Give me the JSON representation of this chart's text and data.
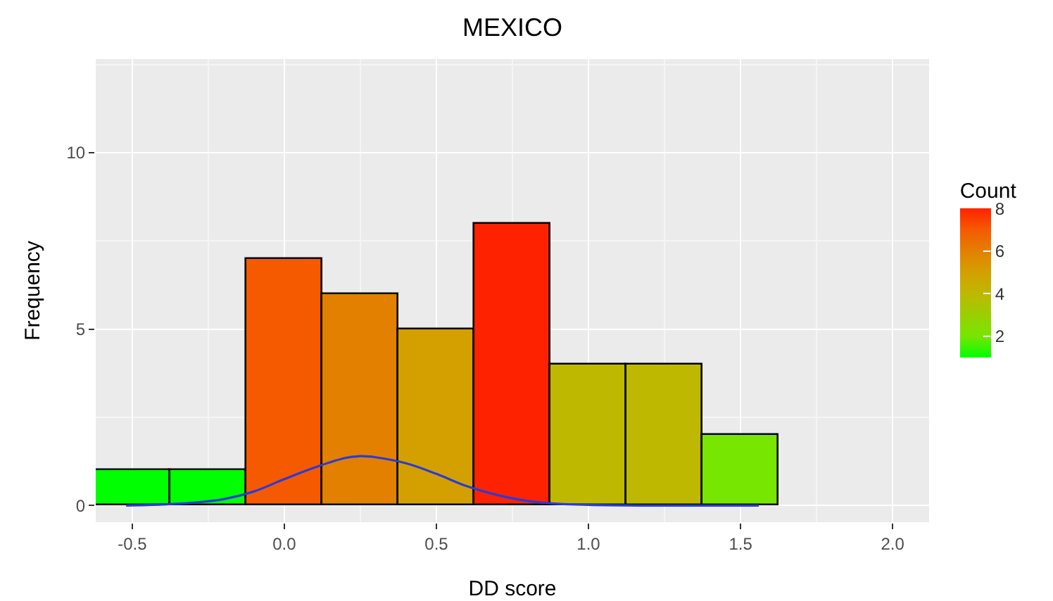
{
  "chart_data": {
    "type": "histogram",
    "title": "MEXICO",
    "xlabel": "DD score",
    "ylabel": "Frequency",
    "clabel": "Count",
    "bins": [
      -0.625,
      -0.375,
      -0.125,
      0.125,
      0.375,
      0.625,
      0.875,
      1.125,
      1.375,
      1.625
    ],
    "values": [
      1,
      1,
      7,
      6,
      5,
      8,
      4,
      4,
      2
    ],
    "colors": [
      "#00ff00",
      "#00ff00",
      "#f55a00",
      "#e38000",
      "#d4a000",
      "#ff2200",
      "#bfb800",
      "#bfb800",
      "#77e600"
    ],
    "series": [
      {
        "type": "line",
        "color": "#2a3bd8",
        "x": [
          -0.52,
          -0.4,
          -0.3,
          -0.2,
          -0.1,
          0,
          0.1,
          0.2,
          0.25,
          0.3,
          0.4,
          0.5,
          0.6,
          0.7,
          0.8,
          0.9,
          1.0,
          1.2,
          1.56
        ],
        "values": [
          0,
          0.03,
          0.08,
          0.18,
          0.4,
          0.75,
          1.08,
          1.35,
          1.4,
          1.37,
          1.2,
          0.9,
          0.55,
          0.3,
          0.13,
          0.05,
          0.02,
          0,
          0
        ]
      }
    ],
    "xlim": [
      -0.62,
      2.12
    ],
    "ylim": [
      -0.47,
      12.65
    ],
    "xticks": [
      -0.5,
      {
        "value": 0,
        "label": "0.0"
      },
      0.5,
      {
        "value": 1,
        "label": "1.0"
      },
      1.5,
      {
        "value": 2,
        "label": "2.0"
      }
    ],
    "yticks": [
      0,
      5,
      10
    ],
    "clim": [
      1,
      8
    ],
    "cticks": [
      2,
      4,
      6,
      8
    ],
    "grid": true
  }
}
